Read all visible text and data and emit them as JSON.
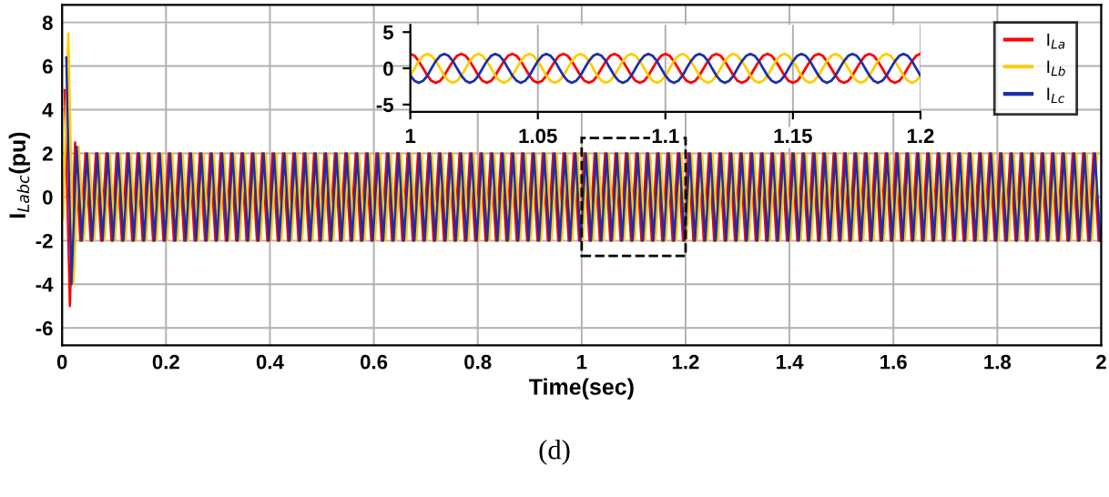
{
  "chart_data": [
    {
      "type": "line",
      "xlabel": "Time(sec)",
      "ylabel": "I$_{Labc}$(pu)",
      "xlim": [
        0,
        2
      ],
      "xticks": [
        0,
        0.2,
        0.4,
        0.6,
        0.8,
        1,
        1.2,
        1.4,
        1.6,
        1.8,
        2
      ],
      "ylim": [
        -6.8,
        8.8
      ],
      "yticks": [
        -6,
        -4,
        -2,
        0,
        2,
        4,
        6,
        8
      ],
      "grid": true,
      "legend": "top right",
      "annotations": [
        "(d)"
      ],
      "series": [
        {
          "name": "I$_{La}$",
          "color": "#ff0000",
          "x": [
            0.005,
            0.015,
            0.025,
            0.035,
            0.045,
            0.055,
            0.065,
            0.075,
            0.085,
            0.095,
            0.105,
            0.115,
            0.125,
            0.135,
            0.145,
            0.155,
            0.165,
            0.175,
            0.185,
            0.195,
            0.205,
            0.215,
            0.225,
            0.235,
            0.245,
            0.255,
            0.265,
            0.275,
            0.285,
            0.295,
            0.305,
            0.315,
            0.325,
            0.335,
            0.345,
            0.355,
            0.365,
            0.375,
            0.385,
            0.395,
            0.405,
            0.415,
            0.425,
            0.435,
            0.445,
            0.455,
            0.465,
            0.475,
            0.485,
            0.495,
            0.505,
            0.515,
            0.525,
            0.535,
            0.545,
            0.555,
            0.565,
            0.575,
            0.585,
            0.595,
            0.605,
            0.615,
            0.625,
            0.635,
            0.645,
            0.655,
            0.665,
            0.675,
            0.685,
            0.695,
            0.705,
            0.715,
            0.725,
            0.735,
            0.745,
            0.755,
            0.765,
            0.775,
            0.785,
            0.795,
            0.805,
            0.815,
            0.825,
            0.835,
            0.845,
            0.855,
            0.865,
            0.875,
            0.885,
            0.895,
            0.905,
            0.915,
            0.925,
            0.935,
            0.945,
            0.955,
            0.965,
            0.975,
            0.985,
            0.995,
            1.005,
            1.015,
            1.025,
            1.035,
            1.045,
            1.055,
            1.065,
            1.075,
            1.085,
            1.095,
            1.105,
            1.115,
            1.125,
            1.135,
            1.145,
            1.155,
            1.165,
            1.175,
            1.185,
            1.195,
            1.205,
            1.215,
            1.225,
            1.235,
            1.245,
            1.255,
            1.265,
            1.275,
            1.285,
            1.295,
            1.305,
            1.315,
            1.325,
            1.335,
            1.345,
            1.355,
            1.365,
            1.375,
            1.385,
            1.395,
            1.405,
            1.415,
            1.425,
            1.435,
            1.445,
            1.455,
            1.465,
            1.475,
            1.485,
            1.495,
            1.505,
            1.515,
            1.525,
            1.535,
            1.545,
            1.555,
            1.565,
            1.575,
            1.585,
            1.595,
            1.605,
            1.615,
            1.625,
            1.635,
            1.645,
            1.655,
            1.665,
            1.675,
            1.685,
            1.695,
            1.705,
            1.715,
            1.725,
            1.735,
            1.745,
            1.755,
            1.765,
            1.775,
            1.785,
            1.795,
            1.805,
            1.815,
            1.825,
            1.835,
            1.845,
            1.855,
            1.865,
            1.875,
            1.885,
            1.895,
            1.905,
            1.915,
            1.925,
            1.935,
            1.945,
            1.955,
            1.965,
            1.975,
            1.985,
            1.995
          ],
          "values": [
            4.9,
            -5,
            2.5,
            -2,
            2,
            -2,
            2,
            -2,
            2,
            -2,
            2,
            -2,
            2,
            -2,
            2,
            -2,
            2,
            -2,
            2,
            -2,
            2,
            -2,
            2,
            -2,
            2,
            -2,
            2,
            -2,
            2,
            -2,
            2,
            -2,
            2,
            -2,
            2,
            -2,
            2,
            -2,
            2,
            -2,
            2,
            -2,
            2,
            -2,
            2,
            -2,
            2,
            -2,
            2,
            -2,
            2,
            -2,
            2,
            -2,
            2,
            -2,
            2,
            -2,
            2,
            -2,
            2,
            -2,
            2,
            -2,
            2,
            -2,
            2,
            -2,
            2,
            -2,
            2,
            -2,
            2,
            -2,
            2,
            -2,
            2,
            -2,
            2,
            -2,
            2,
            -2,
            2,
            -2,
            2,
            -2,
            2,
            -2,
            2,
            -2,
            2,
            -2,
            2,
            -2,
            2,
            -2,
            2,
            -2,
            2,
            -2,
            2,
            -2,
            2,
            -2,
            2,
            -2,
            2,
            -2,
            2,
            -2,
            2,
            -2,
            2,
            -2,
            2,
            -2,
            2,
            -2,
            2,
            -2,
            2,
            -2,
            2,
            -2,
            2,
            -2,
            2,
            -2,
            2,
            -2,
            2,
            -2,
            2,
            -2,
            2,
            -2,
            2,
            -2,
            2,
            -2,
            2,
            -2,
            2,
            -2,
            2,
            -2,
            2,
            -2,
            2,
            -2,
            2,
            -2,
            2,
            -2,
            2,
            -2,
            2,
            -2,
            2,
            -2,
            2,
            -2,
            2,
            -2,
            2,
            -2,
            2,
            -2,
            2,
            -2,
            2,
            -2,
            2,
            -2,
            2,
            -2,
            2,
            -2,
            2,
            -2,
            2,
            -2,
            2,
            -2,
            2,
            -2,
            2,
            -2,
            2,
            -2,
            2,
            -2,
            2,
            -2,
            2,
            -2,
            2,
            -2,
            2,
            -2
          ]
        },
        {
          "name": "I$_{Lb}$",
          "color": "#ffcc00",
          "x": [
            0.002,
            0.012,
            0.022,
            0.032,
            0.042,
            0.052,
            0.062,
            0.072,
            0.082,
            0.092,
            0.102,
            0.112,
            0.122,
            0.132,
            0.142,
            0.152,
            0.162,
            0.172,
            0.182,
            0.192,
            0.202,
            0.212,
            0.222,
            0.232,
            0.242,
            0.252,
            0.262,
            0.272,
            0.282,
            0.292,
            0.302,
            0.312,
            0.322,
            0.332,
            0.342,
            0.352,
            0.362,
            0.372,
            0.382,
            0.392,
            0.402,
            0.412,
            0.422,
            0.432,
            0.442,
            0.452,
            0.462,
            0.472,
            0.482,
            0.492,
            0.502,
            0.512,
            0.522,
            0.532,
            0.542,
            0.552,
            0.562,
            0.572,
            0.582,
            0.592,
            0.602,
            0.612,
            0.622,
            0.632,
            0.642,
            0.652,
            0.662,
            0.672,
            0.682,
            0.692,
            0.702,
            0.712,
            0.722,
            0.732,
            0.742,
            0.752,
            0.762,
            0.772,
            0.782,
            0.792,
            0.802,
            0.812,
            0.822,
            0.832,
            0.842,
            0.852,
            0.862,
            0.872,
            0.882,
            0.892,
            0.902,
            0.912,
            0.922,
            0.932,
            0.942,
            0.952,
            0.962,
            0.972,
            0.982,
            0.992,
            1.002,
            1.012,
            1.022,
            1.032,
            1.042,
            1.052,
            1.062,
            1.072,
            1.082,
            1.092,
            1.102,
            1.112,
            1.122,
            1.132,
            1.142,
            1.152,
            1.162,
            1.172,
            1.182,
            1.192,
            1.202,
            1.212,
            1.222,
            1.232,
            1.242,
            1.252,
            1.262,
            1.272,
            1.282,
            1.292,
            1.302,
            1.312,
            1.322,
            1.332,
            1.342,
            1.352,
            1.362,
            1.372,
            1.382,
            1.392,
            1.402,
            1.412,
            1.422,
            1.432,
            1.442,
            1.452,
            1.462,
            1.472,
            1.482,
            1.492,
            1.502,
            1.512,
            1.522,
            1.532,
            1.542,
            1.552,
            1.562,
            1.572,
            1.582,
            1.592,
            1.602,
            1.612,
            1.622,
            1.632,
            1.642,
            1.652,
            1.662,
            1.672,
            1.682,
            1.692,
            1.702,
            1.712,
            1.722,
            1.732,
            1.742,
            1.752,
            1.762,
            1.772,
            1.782,
            1.792,
            1.802,
            1.812,
            1.822,
            1.832,
            1.842,
            1.852,
            1.862,
            1.872,
            1.882,
            1.892,
            1.902,
            1.912,
            1.922,
            1.932,
            1.942,
            1.952,
            1.962,
            1.972,
            1.982,
            1.992
          ],
          "values": [
            -1,
            7.5,
            -4,
            2.3,
            -2,
            2,
            -2,
            2,
            -2,
            2,
            -2,
            2,
            -2,
            2,
            -2,
            2,
            -2,
            2,
            -2,
            2,
            -2,
            2,
            -2,
            2,
            -2,
            2,
            -2,
            2,
            -2,
            2,
            -2,
            2,
            -2,
            2,
            -2,
            2,
            -2,
            2,
            -2,
            2,
            -2,
            2,
            -2,
            2,
            -2,
            2,
            -2,
            2,
            -2,
            2,
            -2,
            2,
            -2,
            2,
            -2,
            2,
            -2,
            2,
            -2,
            2,
            -2,
            2,
            -2,
            2,
            -2,
            2,
            -2,
            2,
            -2,
            2,
            -2,
            2,
            -2,
            2,
            -2,
            2,
            -2,
            2,
            -2,
            2,
            -2,
            2,
            -2,
            2,
            -2,
            2,
            -2,
            2,
            -2,
            2,
            -2,
            2,
            -2,
            2,
            -2,
            2,
            -2,
            2,
            -2,
            2,
            -2,
            2,
            -2,
            2,
            -2,
            2,
            -2,
            2,
            -2,
            2,
            -2,
            2,
            -2,
            2,
            -2,
            2,
            -2,
            2,
            -2,
            2,
            -2,
            2,
            -2,
            2,
            -2,
            2,
            -2,
            2,
            -2,
            2,
            -2,
            2,
            -2,
            2,
            -2,
            2,
            -2,
            2,
            -2,
            2,
            -2,
            2,
            -2,
            2,
            -2,
            2,
            -2,
            2,
            -2,
            2,
            -2,
            2,
            -2,
            2,
            -2,
            2,
            -2,
            2,
            -2,
            2,
            -2,
            2,
            -2,
            2,
            -2,
            2,
            -2,
            2,
            -2,
            2,
            -2,
            2,
            -2,
            2,
            -2,
            2,
            -2,
            2,
            -2,
            2,
            -2,
            2,
            -2,
            2,
            -2,
            2,
            -2,
            2,
            -2,
            2,
            -2,
            2,
            -2,
            2,
            -2,
            2,
            -2,
            2,
            -2,
            2
          ]
        },
        {
          "name": "I$_{Lc}$",
          "color": "#1f2fa8",
          "x": [
            0.008,
            0.018,
            0.028,
            0.038,
            0.048,
            0.058,
            0.068,
            0.078,
            0.088,
            0.098,
            0.108,
            0.118,
            0.128,
            0.138,
            0.148,
            0.158,
            0.168,
            0.178,
            0.188,
            0.198,
            0.208,
            0.218,
            0.228,
            0.238,
            0.248,
            0.258,
            0.268,
            0.278,
            0.288,
            0.298,
            0.308,
            0.318,
            0.328,
            0.338,
            0.348,
            0.358,
            0.368,
            0.378,
            0.388,
            0.398,
            0.408,
            0.418,
            0.428,
            0.438,
            0.448,
            0.458,
            0.468,
            0.478,
            0.488,
            0.498,
            0.508,
            0.518,
            0.528,
            0.538,
            0.548,
            0.558,
            0.568,
            0.578,
            0.588,
            0.598,
            0.608,
            0.618,
            0.628,
            0.638,
            0.648,
            0.658,
            0.668,
            0.678,
            0.688,
            0.698,
            0.708,
            0.718,
            0.728,
            0.738,
            0.748,
            0.758,
            0.768,
            0.778,
            0.788,
            0.798,
            0.808,
            0.818,
            0.828,
            0.838,
            0.848,
            0.858,
            0.868,
            0.878,
            0.888,
            0.898,
            0.908,
            0.918,
            0.928,
            0.938,
            0.948,
            0.958,
            0.968,
            0.978,
            0.988,
            0.998,
            1.008,
            1.018,
            1.028,
            1.038,
            1.048,
            1.058,
            1.068,
            1.078,
            1.088,
            1.098,
            1.108,
            1.118,
            1.128,
            1.138,
            1.148,
            1.158,
            1.168,
            1.178,
            1.188,
            1.198,
            1.208,
            1.218,
            1.228,
            1.238,
            1.248,
            1.258,
            1.268,
            1.278,
            1.288,
            1.298,
            1.308,
            1.318,
            1.328,
            1.338,
            1.348,
            1.358,
            1.368,
            1.378,
            1.388,
            1.398,
            1.408,
            1.418,
            1.428,
            1.438,
            1.448,
            1.458,
            1.468,
            1.478,
            1.488,
            1.498,
            1.508,
            1.518,
            1.528,
            1.538,
            1.548,
            1.558,
            1.568,
            1.578,
            1.588,
            1.598,
            1.608,
            1.618,
            1.628,
            1.638,
            1.648,
            1.658,
            1.668,
            1.678,
            1.688,
            1.698,
            1.708,
            1.718,
            1.728,
            1.738,
            1.748,
            1.758,
            1.768,
            1.778,
            1.788,
            1.798,
            1.808,
            1.818,
            1.828,
            1.838,
            1.848,
            1.858,
            1.868,
            1.878,
            1.888,
            1.898,
            1.908,
            1.918,
            1.928,
            1.938,
            1.948,
            1.958,
            1.968,
            1.978,
            1.988,
            1.998
          ],
          "values": [
            6.4,
            -4,
            2.3,
            -2,
            2,
            -2,
            2,
            -2,
            2,
            -2,
            2,
            -2,
            2,
            -2,
            2,
            -2,
            2,
            -2,
            2,
            -2,
            2,
            -2,
            2,
            -2,
            2,
            -2,
            2,
            -2,
            2,
            -2,
            2,
            -2,
            2,
            -2,
            2,
            -2,
            2,
            -2,
            2,
            -2,
            2,
            -2,
            2,
            -2,
            2,
            -2,
            2,
            -2,
            2,
            -2,
            2,
            -2,
            2,
            -2,
            2,
            -2,
            2,
            -2,
            2,
            -2,
            2,
            -2,
            2,
            -2,
            2,
            -2,
            2,
            -2,
            2,
            -2,
            2,
            -2,
            2,
            -2,
            2,
            -2,
            2,
            -2,
            2,
            -2,
            2,
            -2,
            2,
            -2,
            2,
            -2,
            2,
            -2,
            2,
            -2,
            2,
            -2,
            2,
            -2,
            2,
            -2,
            2,
            -2,
            2,
            -2,
            2,
            -2,
            2,
            -2,
            2,
            -2,
            2,
            -2,
            2,
            -2,
            2,
            -2,
            2,
            -2,
            2,
            -2,
            2,
            -2,
            2,
            -2,
            2,
            -2,
            2,
            -2,
            2,
            -2,
            2,
            -2,
            2,
            -2,
            2,
            -2,
            2,
            -2,
            2,
            -2,
            2,
            -2,
            2,
            -2,
            2,
            -2,
            2,
            -2,
            2,
            -2,
            2,
            -2,
            2,
            -2,
            2,
            -2,
            2,
            -2,
            2,
            -2,
            2,
            -2,
            2,
            -2,
            2,
            -2,
            2,
            -2,
            2,
            -2,
            2,
            -2,
            2,
            -2,
            2,
            -2,
            2,
            -2,
            2,
            -2,
            2,
            -2,
            2,
            -2,
            2,
            -2,
            2,
            -2,
            2,
            -2,
            2,
            -2,
            2,
            -2,
            2,
            -2,
            2,
            -2,
            2,
            -2,
            2,
            -2,
            2,
            -2
          ]
        }
      ]
    },
    {
      "type": "line",
      "xlim": [
        1,
        1.2
      ],
      "xticks": [
        1,
        1.05,
        1.1,
        1.15,
        1.2
      ],
      "ylim": [
        -6,
        6
      ],
      "yticks": [
        -5,
        0,
        5
      ],
      "grid": "x",
      "x": [
        1,
        1.0017,
        1.0033,
        1.005,
        1.0067,
        1.0083,
        1.01,
        1.0117,
        1.0133,
        1.015,
        1.0167,
        1.0183,
        1.02,
        1.0217,
        1.0233,
        1.025,
        1.0267,
        1.0283,
        1.03,
        1.0317,
        1.0333,
        1.035,
        1.0367,
        1.0383,
        1.04,
        1.0417,
        1.0433,
        1.045,
        1.0467,
        1.0483,
        1.05,
        1.0517,
        1.0533,
        1.055,
        1.0567,
        1.0583,
        1.06,
        1.0617,
        1.0633,
        1.065,
        1.0667,
        1.0683,
        1.07,
        1.0717,
        1.0733,
        1.075,
        1.0767,
        1.0783,
        1.08,
        1.0817,
        1.0833,
        1.085,
        1.0867,
        1.0883,
        1.09,
        1.0917,
        1.0933,
        1.095,
        1.0967,
        1.0983,
        1.1,
        1.1017,
        1.1033,
        1.105,
        1.1067,
        1.1083,
        1.11,
        1.1117,
        1.1133,
        1.115,
        1.1167,
        1.1183,
        1.12,
        1.1217,
        1.1233,
        1.125,
        1.1267,
        1.1283,
        1.13,
        1.1317,
        1.1333,
        1.135,
        1.1367,
        1.1383,
        1.14,
        1.1417,
        1.1433,
        1.145,
        1.1467,
        1.1483,
        1.15,
        1.1517,
        1.1533,
        1.155,
        1.1567,
        1.1583,
        1.16,
        1.1617,
        1.1633,
        1.165,
        1.1667,
        1.1683,
        1.17,
        1.1717,
        1.1733,
        1.175,
        1.1767,
        1.1783,
        1.18,
        1.1817,
        1.1833,
        1.185,
        1.1867,
        1.1883,
        1.19,
        1.1917,
        1.1933,
        1.195,
        1.1967,
        1.1983,
        1.2
      ],
      "series": [
        {
          "color": "#ff0000",
          "values": [
            2,
            1.73,
            1,
            0,
            -1,
            -1.73,
            -2,
            -1.73,
            -1,
            0,
            1,
            1.73,
            2,
            1.73,
            1,
            0,
            -1,
            -1.73,
            -2,
            -1.73,
            -1,
            0,
            1,
            1.73,
            2,
            1.73,
            1,
            0,
            -1,
            -1.73,
            -2,
            -1.73,
            -1,
            0,
            1,
            1.73,
            2,
            1.73,
            1,
            0,
            -1,
            -1.73,
            -2,
            -1.73,
            -1,
            0,
            1,
            1.73,
            2,
            1.73,
            1,
            0,
            -1,
            -1.73,
            -2,
            -1.73,
            -1,
            0,
            1,
            1.73,
            2,
            1.73,
            1,
            0,
            -1,
            -1.73,
            -2,
            -1.73,
            -1,
            0,
            1,
            1.73,
            2,
            1.73,
            1,
            0,
            -1,
            -1.73,
            -2,
            -1.73,
            -1,
            0,
            1,
            1.73,
            2,
            1.73,
            1,
            0,
            -1,
            -1.73,
            -2,
            -1.73,
            -1,
            0,
            1,
            1.73,
            2,
            1.73,
            1,
            0,
            -1,
            -1.73,
            -2,
            -1.73,
            -1,
            0,
            1,
            1.73,
            2,
            1.73,
            1,
            0,
            -1,
            -1.73,
            -2,
            -1.73,
            -1,
            0,
            1,
            1.73,
            2
          ]
        },
        {
          "color": "#ffcc00",
          "values": [
            -1,
            0,
            1,
            1.73,
            2,
            1.73,
            1,
            0,
            -1,
            -1.73,
            -2,
            -1.73,
            -1,
            0,
            1,
            1.73,
            2,
            1.73,
            1,
            0,
            -1,
            -1.73,
            -2,
            -1.73,
            -1,
            0,
            1,
            1.73,
            2,
            1.73,
            1,
            0,
            -1,
            -1.73,
            -2,
            -1.73,
            -1,
            0,
            1,
            1.73,
            2,
            1.73,
            1,
            0,
            -1,
            -1.73,
            -2,
            -1.73,
            -1,
            0,
            1,
            1.73,
            2,
            1.73,
            1,
            0,
            -1,
            -1.73,
            -2,
            -1.73,
            -1,
            0,
            1,
            1.73,
            2,
            1.73,
            1,
            0,
            -1,
            -1.73,
            -2,
            -1.73,
            -1,
            0,
            1,
            1.73,
            2,
            1.73,
            1,
            0,
            -1,
            -1.73,
            -2,
            -1.73,
            -1,
            0,
            1,
            1.73,
            2,
            1.73,
            1,
            0,
            -1,
            -1.73,
            -2,
            -1.73,
            -1,
            0,
            1,
            1.73,
            2,
            1.73,
            1,
            0,
            -1,
            -1.73,
            -2,
            -1.73,
            -1,
            0,
            1,
            1.73,
            2,
            1.73,
            1,
            0,
            -1,
            -1.73,
            -2,
            -1.73,
            -1
          ]
        },
        {
          "color": "#1f2fa8",
          "values": [
            -1,
            -1.73,
            -2,
            -1.73,
            -1,
            0,
            1,
            1.73,
            2,
            1.73,
            1,
            0,
            -1,
            -1.73,
            -2,
            -1.73,
            -1,
            0,
            1,
            1.73,
            2,
            1.73,
            1,
            0,
            -1,
            -1.73,
            -2,
            -1.73,
            -1,
            0,
            1,
            1.73,
            2,
            1.73,
            1,
            0,
            -1,
            -1.73,
            -2,
            -1.73,
            -1,
            0,
            1,
            1.73,
            2,
            1.73,
            1,
            0,
            -1,
            -1.73,
            -2,
            -1.73,
            -1,
            0,
            1,
            1.73,
            2,
            1.73,
            1,
            0,
            -1,
            -1.73,
            -2,
            -1.73,
            -1,
            0,
            1,
            1.73,
            2,
            1.73,
            1,
            0,
            -1,
            -1.73,
            -2,
            -1.73,
            -1,
            0,
            1,
            1.73,
            2,
            1.73,
            1,
            0,
            -1,
            -1.73,
            -2,
            -1.73,
            -1,
            0,
            1,
            1.73,
            2,
            1.73,
            1,
            0,
            -1,
            -1.73,
            -2,
            -1.73,
            -1,
            0,
            1,
            1.73,
            2,
            1.73,
            1,
            0,
            -1,
            -1.73,
            -2,
            -1.73,
            -1,
            0,
            1,
            1.73,
            2,
            1.73,
            1,
            0,
            -1
          ]
        }
      ]
    }
  ]
}
